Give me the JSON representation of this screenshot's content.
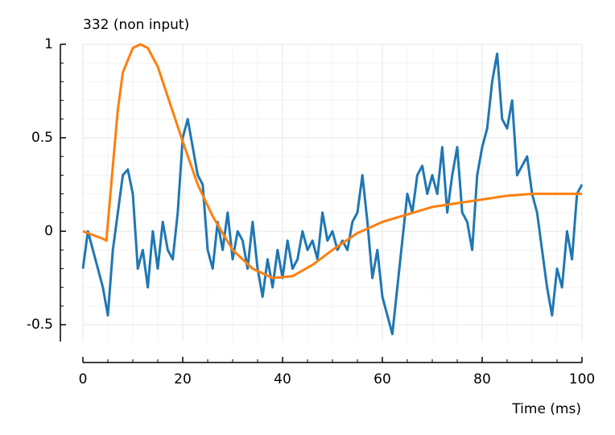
{
  "chart_data": {
    "type": "line",
    "title": "332 (non input)",
    "x_label": "Time (ms)",
    "xlim": [
      0,
      100
    ],
    "ylim": [
      -0.59,
      1
    ],
    "xticks": [
      0,
      20,
      40,
      60,
      80,
      100
    ],
    "yticks": [
      -0.5,
      0,
      0.5,
      1
    ],
    "xminorticks": [
      5,
      10,
      15,
      25,
      30,
      35,
      45,
      50,
      55,
      65,
      70,
      75,
      85,
      90,
      95
    ],
    "yminorticks": [
      -0.4,
      -0.3,
      -0.2,
      -0.1,
      0.1,
      0.2,
      0.3,
      0.4,
      0.6,
      0.7,
      0.8,
      0.9
    ],
    "grid": true,
    "series": [
      {
        "color": "#1f77b4",
        "x": [
          0,
          1,
          2,
          3,
          4,
          5,
          6,
          7,
          8,
          9,
          10,
          11,
          12,
          13,
          14,
          15,
          16,
          17,
          18,
          19,
          20,
          21,
          22,
          23,
          24,
          25,
          26,
          27,
          28,
          29,
          30,
          31,
          32,
          33,
          34,
          35,
          36,
          37,
          38,
          39,
          40,
          41,
          42,
          43,
          44,
          45,
          46,
          47,
          48,
          49,
          50,
          51,
          52,
          53,
          54,
          55,
          56,
          57,
          58,
          59,
          60,
          61,
          62,
          63,
          64,
          65,
          66,
          67,
          68,
          69,
          70,
          71,
          72,
          73,
          74,
          75,
          76,
          77,
          78,
          79,
          80,
          81,
          82,
          83,
          84,
          85,
          86,
          87,
          88,
          89,
          90,
          91,
          92,
          93,
          94,
          95,
          96,
          97,
          98,
          99,
          100
        ],
        "values": [
          -0.2,
          0.0,
          -0.1,
          -0.2,
          -0.3,
          -0.45,
          -0.1,
          0.1,
          0.3,
          0.33,
          0.2,
          -0.2,
          -0.1,
          -0.3,
          0.0,
          -0.2,
          0.05,
          -0.1,
          -0.15,
          0.1,
          0.5,
          0.6,
          0.45,
          0.3,
          0.25,
          -0.1,
          -0.2,
          0.05,
          -0.1,
          0.1,
          -0.15,
          0.0,
          -0.05,
          -0.2,
          0.05,
          -0.2,
          -0.35,
          -0.15,
          -0.3,
          -0.1,
          -0.25,
          -0.05,
          -0.2,
          -0.15,
          0.0,
          -0.1,
          -0.05,
          -0.15,
          0.1,
          -0.05,
          0.0,
          -0.1,
          -0.05,
          -0.1,
          0.05,
          0.1,
          0.3,
          0.05,
          -0.25,
          -0.1,
          -0.35,
          -0.45,
          -0.55,
          -0.3,
          -0.05,
          0.2,
          0.1,
          0.3,
          0.35,
          0.2,
          0.3,
          0.2,
          0.45,
          0.1,
          0.3,
          0.45,
          0.1,
          0.05,
          -0.1,
          0.3,
          0.45,
          0.55,
          0.8,
          0.95,
          0.6,
          0.55,
          0.7,
          0.3,
          0.35,
          0.4,
          0.2,
          0.1,
          -0.1,
          -0.3,
          -0.45,
          -0.2,
          -0.3,
          0.0,
          -0.15,
          0.2,
          0.25
        ]
      },
      {
        "color": "#ff7f0e",
        "x": [
          0,
          2,
          4,
          4.7,
          6,
          7,
          8,
          10,
          11.5,
          13,
          15,
          17,
          20,
          23,
          26,
          30,
          34,
          38,
          42,
          46,
          50,
          55,
          60,
          65,
          70,
          75,
          80,
          85,
          90,
          95,
          100
        ],
        "values": [
          0,
          -0.02,
          -0.04,
          -0.05,
          0.35,
          0.65,
          0.85,
          0.98,
          1,
          0.98,
          0.88,
          0.72,
          0.48,
          0.25,
          0.08,
          -0.1,
          -0.2,
          -0.25,
          -0.24,
          -0.18,
          -0.1,
          -0.01,
          0.05,
          0.09,
          0.13,
          0.15,
          0.17,
          0.19,
          0.2,
          0.2,
          0.2
        ]
      }
    ]
  }
}
